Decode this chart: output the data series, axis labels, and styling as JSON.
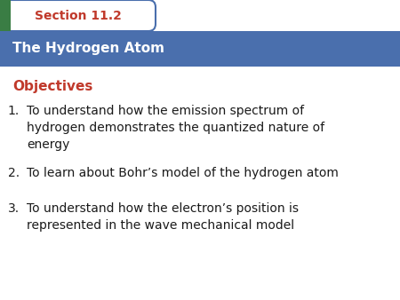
{
  "section_label": "Section 11.2",
  "header_title": "The Hydrogen Atom",
  "objectives_label": "Objectives",
  "items": [
    "To understand how the emission spectrum of\nhydrogen demonstrates the quantized nature of\nenergy",
    "To learn about Bohr’s model of the hydrogen atom",
    "To understand how the electron’s position is\nrepresented in the wave mechanical model"
  ],
  "bg_color": "#ffffff",
  "header_bg_color": "#4a6fad",
  "tab_bg_color": "#ffffff",
  "tab_border_color": "#4a6fad",
  "tab_text_color": "#c0392b",
  "green_rect_color": "#3a7d44",
  "header_text_color": "#ffffff",
  "objectives_color": "#c0392b",
  "body_text_color": "#1a1a1a",
  "section_fontsize": 10,
  "header_fontsize": 11,
  "objectives_fontsize": 11,
  "body_fontsize": 10
}
